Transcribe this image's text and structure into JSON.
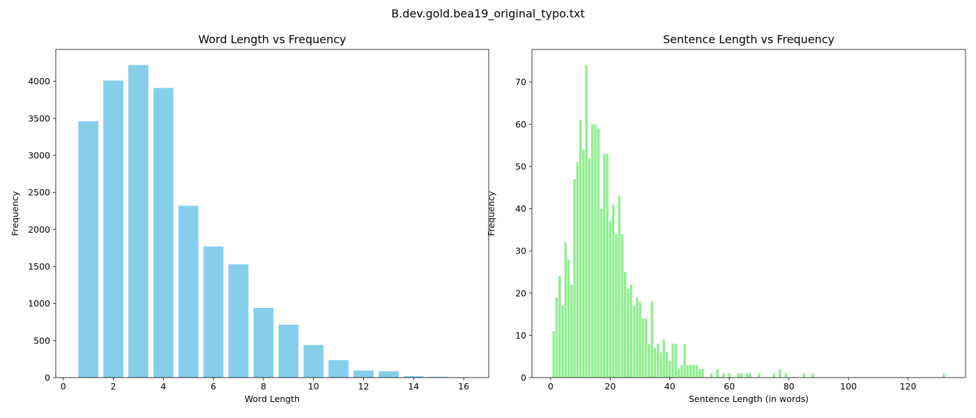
{
  "suptitle": "B.dev.gold.bea19_original_typo.txt",
  "chart_data": [
    {
      "type": "bar",
      "title": "Word Length vs Frequency",
      "xlabel": "Word Length",
      "ylabel": "Frequency",
      "color": "#87ceeb",
      "xlim": [
        -0.3,
        17.0
      ],
      "ylim": [
        0,
        4430
      ],
      "xticks": [
        0,
        2,
        4,
        6,
        8,
        10,
        12,
        14,
        16
      ],
      "yticks": [
        0,
        500,
        1000,
        1500,
        2000,
        2500,
        3000,
        3500,
        4000
      ],
      "bar_width": 0.8,
      "x": [
        1,
        2,
        3,
        4,
        5,
        6,
        7,
        8,
        9,
        10,
        11,
        12,
        13,
        14,
        15,
        16
      ],
      "values": [
        3460,
        4010,
        4220,
        3910,
        2320,
        1770,
        1530,
        940,
        715,
        440,
        235,
        95,
        85,
        20,
        10,
        2
      ]
    },
    {
      "type": "bar",
      "title": "Sentence Length vs Frequency",
      "xlabel": "Sentence Length (in words)",
      "ylabel": "Frequency",
      "color": "#90ee90",
      "xlim": [
        -6.3,
        139.3
      ],
      "ylim": [
        0,
        77.7
      ],
      "xticks": [
        0,
        20,
        40,
        60,
        80,
        100,
        120
      ],
      "yticks": [
        0,
        10,
        20,
        30,
        40,
        50,
        60,
        70
      ],
      "bar_width": 0.8,
      "x": [
        1,
        2,
        3,
        4,
        5,
        6,
        7,
        8,
        9,
        10,
        11,
        12,
        13,
        14,
        15,
        16,
        17,
        18,
        19,
        20,
        21,
        22,
        23,
        24,
        25,
        26,
        27,
        28,
        29,
        30,
        31,
        32,
        33,
        34,
        35,
        36,
        37,
        38,
        39,
        40,
        41,
        42,
        43,
        44,
        45,
        46,
        47,
        48,
        49,
        50,
        51,
        54,
        56,
        58,
        60,
        63,
        64,
        66,
        67,
        70,
        75,
        77,
        79,
        85,
        88,
        132
      ],
      "values": [
        11,
        19,
        24,
        17,
        32,
        28,
        22,
        47,
        51,
        61,
        54,
        74,
        52,
        60,
        60,
        59,
        40,
        53,
        53,
        37,
        41,
        34,
        43,
        34,
        25,
        21,
        22,
        17,
        19,
        18,
        14,
        14,
        8,
        18,
        7,
        8,
        6,
        9,
        6,
        4,
        8,
        8,
        2,
        3,
        8,
        3,
        3,
        3,
        3,
        2,
        2,
        1,
        2,
        1,
        1,
        1,
        1,
        1,
        1,
        1,
        1,
        2,
        1,
        1,
        1,
        1
      ]
    }
  ]
}
